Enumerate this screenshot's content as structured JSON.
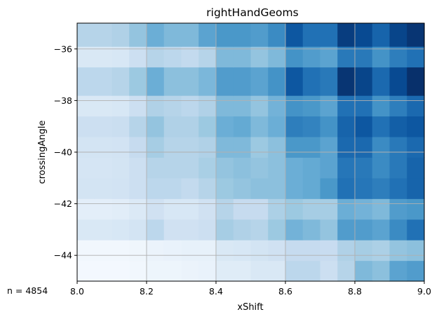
{
  "chart_data": {
    "type": "heatmap",
    "title": "rightHandGeoms",
    "xlabel": "xShift",
    "ylabel": "crossingAngle",
    "annotation": "n = 4854",
    "xlim": [
      8.0,
      9.0
    ],
    "ylim": [
      -45.0,
      -35.0
    ],
    "xticks": [
      8.0,
      8.2,
      8.4,
      8.6,
      8.8,
      9.0
    ],
    "xtick_labels": [
      "8.0",
      "8.2",
      "8.4",
      "8.6",
      "8.8",
      "9.0"
    ],
    "yticks": [
      -44,
      -42,
      -40,
      -38,
      -36
    ],
    "ytick_labels": [
      "−44",
      "−42",
      "−40",
      "−38",
      "−36"
    ],
    "grid": true,
    "colormap": "Blues",
    "x_bin_edges": [
      8.0,
      8.05,
      8.1,
      8.15,
      8.2,
      8.25,
      8.3,
      8.35,
      8.4,
      8.45,
      8.5,
      8.55,
      8.6,
      8.65,
      8.7,
      8.75,
      8.8,
      8.85,
      8.9,
      8.95,
      9.0
    ],
    "y_bin_edges": [
      -45.0,
      -44.2,
      -43.4,
      -42.6,
      -41.8,
      -41.0,
      -40.2,
      -39.4,
      -38.6,
      -37.8,
      -36.7,
      -35.9,
      -35.0
    ],
    "values": [
      [
        0.02,
        0.02,
        0.02,
        0.03,
        0.05,
        0.05,
        0.06,
        0.07,
        0.12,
        0.12,
        0.15,
        0.15,
        0.28,
        0.28,
        0.22,
        0.3,
        0.45,
        0.42,
        0.55,
        0.58
      ],
      [
        0.03,
        0.03,
        0.03,
        0.04,
        0.06,
        0.07,
        0.08,
        0.08,
        0.15,
        0.16,
        0.18,
        0.2,
        0.25,
        0.25,
        0.24,
        0.32,
        0.35,
        0.33,
        0.4,
        0.42
      ],
      [
        0.15,
        0.15,
        0.16,
        0.18,
        0.28,
        0.2,
        0.2,
        0.22,
        0.35,
        0.32,
        0.3,
        0.38,
        0.48,
        0.45,
        0.4,
        0.58,
        0.58,
        0.55,
        0.65,
        0.75
      ],
      [
        0.1,
        0.1,
        0.11,
        0.14,
        0.2,
        0.16,
        0.16,
        0.2,
        0.3,
        0.25,
        0.25,
        0.33,
        0.38,
        0.35,
        0.35,
        0.5,
        0.48,
        0.45,
        0.58,
        0.6
      ],
      [
        0.18,
        0.18,
        0.19,
        0.22,
        0.28,
        0.28,
        0.26,
        0.3,
        0.38,
        0.4,
        0.42,
        0.42,
        0.5,
        0.52,
        0.6,
        0.75,
        0.73,
        0.7,
        0.75,
        0.8
      ],
      [
        0.17,
        0.17,
        0.18,
        0.22,
        0.3,
        0.3,
        0.3,
        0.34,
        0.4,
        0.42,
        0.4,
        0.42,
        0.5,
        0.52,
        0.55,
        0.73,
        0.72,
        0.65,
        0.72,
        0.8
      ],
      [
        0.18,
        0.18,
        0.19,
        0.25,
        0.35,
        0.3,
        0.3,
        0.32,
        0.45,
        0.45,
        0.38,
        0.42,
        0.6,
        0.6,
        0.55,
        0.78,
        0.78,
        0.65,
        0.72,
        0.78
      ],
      [
        0.22,
        0.22,
        0.23,
        0.3,
        0.4,
        0.32,
        0.32,
        0.38,
        0.5,
        0.52,
        0.45,
        0.5,
        0.7,
        0.68,
        0.62,
        0.8,
        0.85,
        0.75,
        0.82,
        0.85
      ],
      [
        0.15,
        0.15,
        0.16,
        0.22,
        0.32,
        0.3,
        0.28,
        0.32,
        0.45,
        0.45,
        0.4,
        0.48,
        0.62,
        0.6,
        0.55,
        0.75,
        0.75,
        0.62,
        0.7,
        0.78
      ],
      [
        0.28,
        0.28,
        0.3,
        0.38,
        0.5,
        0.42,
        0.42,
        0.46,
        0.58,
        0.58,
        0.55,
        0.62,
        0.85,
        0.75,
        0.72,
        0.98,
        0.92,
        0.78,
        0.9,
        1.0
      ],
      [
        0.15,
        0.15,
        0.16,
        0.22,
        0.3,
        0.28,
        0.26,
        0.3,
        0.45,
        0.45,
        0.4,
        0.45,
        0.62,
        0.58,
        0.55,
        0.72,
        0.72,
        0.62,
        0.7,
        0.75
      ],
      [
        0.3,
        0.3,
        0.32,
        0.4,
        0.5,
        0.45,
        0.45,
        0.55,
        0.6,
        0.6,
        0.58,
        0.65,
        0.85,
        0.75,
        0.75,
        0.95,
        0.9,
        0.8,
        0.92,
        0.98
      ]
    ],
    "colors": {
      "axes": "#000000",
      "grid": "#b0b0b0"
    }
  }
}
